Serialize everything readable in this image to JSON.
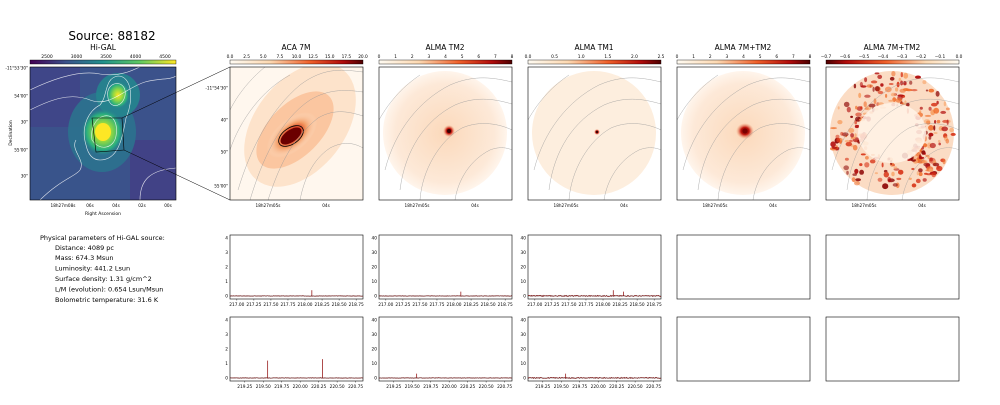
{
  "source_title": "Source: 88182",
  "colors": {
    "hot_dark": "#7a0000",
    "hot_mid": "#e0401a",
    "hot_light": "#fde9d4",
    "viridis_low": "#440154",
    "viridis_high": "#fde725",
    "spectrum_line": "#8b0000"
  },
  "higal": {
    "title": "Hi-GAL",
    "colorbar_ticks": [
      "2500",
      "3000",
      "3500",
      "4000",
      "4500"
    ],
    "y_ticks": [
      "-11°53'30\"",
      "54'00\"",
      "30\"",
      "55'00\"",
      "30\""
    ],
    "x_ticks": [
      "18h27m08s",
      "06s",
      "04s",
      "02s",
      "00s"
    ],
    "xlabel": "Right Ascension",
    "ylabel": "Declination"
  },
  "panels": [
    {
      "title": "ACA 7M",
      "colorbar_ticks": [
        "0.0",
        "2.5",
        "5.0",
        "7.5",
        "10.0",
        "12.5",
        "15.0",
        "17.5",
        "20.0"
      ],
      "y_ticks": [
        "-11°54'30\"",
        "40\"",
        "50\"",
        "55'00\""
      ],
      "x_ticks": [
        "18h27m05s",
        "04s"
      ]
    },
    {
      "title": "ALMA TM2",
      "colorbar_ticks": [
        "0",
        "1",
        "2",
        "3",
        "4",
        "5",
        "6",
        "7",
        "8"
      ],
      "x_ticks": [
        "18h27m05s",
        "04s"
      ]
    },
    {
      "title": "ALMA TM1",
      "colorbar_ticks": [
        "0.0",
        "0.5",
        "1.0",
        "1.5",
        "2.0",
        "2.5"
      ],
      "x_ticks": [
        "18h27m05s",
        "04s"
      ]
    },
    {
      "title": "ALMA 7M+TM2",
      "colorbar_ticks": [
        "0",
        "1",
        "2",
        "3",
        "4",
        "5",
        "6",
        "7",
        "8"
      ],
      "x_ticks": [
        "18h27m05s",
        "04s"
      ]
    },
    {
      "title": "ALMA 7M+TM2",
      "colorbar_ticks": [
        "−0.7",
        "−0.6",
        "−0.5",
        "−0.4",
        "−0.3",
        "−0.2",
        "−0.1",
        "0.0"
      ],
      "x_ticks": [
        "18h27m05s",
        "04s"
      ]
    }
  ],
  "physical": {
    "heading": "Physical parameters of Hi-GAL source:",
    "lines": [
      "Distance: 4089 pc",
      "Mass: 674.3 Msun",
      "Luminosity: 441.2 Lsun",
      "Surface density: 1.31 g/cm^2",
      "L/M (evolution): 0.654 Lsun/Msun",
      "Bolometric temperature: 31.6 K"
    ]
  },
  "chart_data": [
    {
      "type": "line",
      "row": 1,
      "col": 1,
      "y_ticks": [
        "0",
        "1",
        "2",
        "3",
        "4"
      ],
      "ylim": [
        0,
        4
      ],
      "x_ticks": [
        "217.00",
        "217.25",
        "217.50",
        "217.75",
        "218.00",
        "218.25",
        "218.50",
        "218.75"
      ],
      "xlim": [
        216.9,
        218.85
      ],
      "spikes": [
        {
          "x": 218.1,
          "y": 0.4
        }
      ]
    },
    {
      "type": "line",
      "row": 1,
      "col": 2,
      "y_ticks": [
        "0",
        "10",
        "20",
        "30",
        "40"
      ],
      "ylim": [
        0,
        40
      ],
      "x_ticks": [
        "217.00",
        "217.25",
        "217.50",
        "217.75",
        "218.00",
        "218.25",
        "218.50",
        "218.75"
      ],
      "xlim": [
        216.9,
        218.85
      ],
      "spikes": [
        {
          "x": 218.1,
          "y": 3
        }
      ]
    },
    {
      "type": "line",
      "row": 1,
      "col": 3,
      "y_ticks": [
        "0",
        "10",
        "20",
        "30",
        "40"
      ],
      "ylim": [
        0,
        40
      ],
      "x_ticks": [
        "217.00",
        "217.25",
        "217.50",
        "217.75",
        "218.00",
        "218.25",
        "218.50",
        "218.75"
      ],
      "xlim": [
        216.9,
        218.85
      ],
      "spikes": [
        {
          "x": 218.15,
          "y": 4
        },
        {
          "x": 218.3,
          "y": 3
        }
      ]
    },
    {
      "type": "line",
      "row": 2,
      "col": 1,
      "y_ticks": [
        "0",
        "1",
        "2",
        "3",
        "4"
      ],
      "ylim": [
        0,
        4
      ],
      "x_ticks": [
        "219.25",
        "219.50",
        "219.75",
        "220.00",
        "220.25",
        "220.50",
        "220.75"
      ],
      "xlim": [
        219.05,
        220.85
      ],
      "spikes": [
        {
          "x": 219.56,
          "y": 1.2
        },
        {
          "x": 220.3,
          "y": 1.3
        }
      ]
    },
    {
      "type": "line",
      "row": 2,
      "col": 2,
      "y_ticks": [
        "0",
        "10",
        "20",
        "30",
        "40"
      ],
      "ylim": [
        0,
        40
      ],
      "x_ticks": [
        "219.25",
        "219.50",
        "219.75",
        "220.00",
        "220.25",
        "220.50",
        "220.75"
      ],
      "xlim": [
        219.05,
        220.85
      ],
      "spikes": [
        {
          "x": 219.56,
          "y": 3
        }
      ]
    },
    {
      "type": "line",
      "row": 2,
      "col": 3,
      "y_ticks": [
        "0",
        "10",
        "20",
        "30",
        "40"
      ],
      "ylim": [
        0,
        40
      ],
      "x_ticks": [
        "219.25",
        "219.50",
        "219.75",
        "220.00",
        "220.25",
        "220.50",
        "220.75"
      ],
      "xlim": [
        219.05,
        220.85
      ],
      "spikes": [
        {
          "x": 219.56,
          "y": 3
        }
      ]
    }
  ]
}
